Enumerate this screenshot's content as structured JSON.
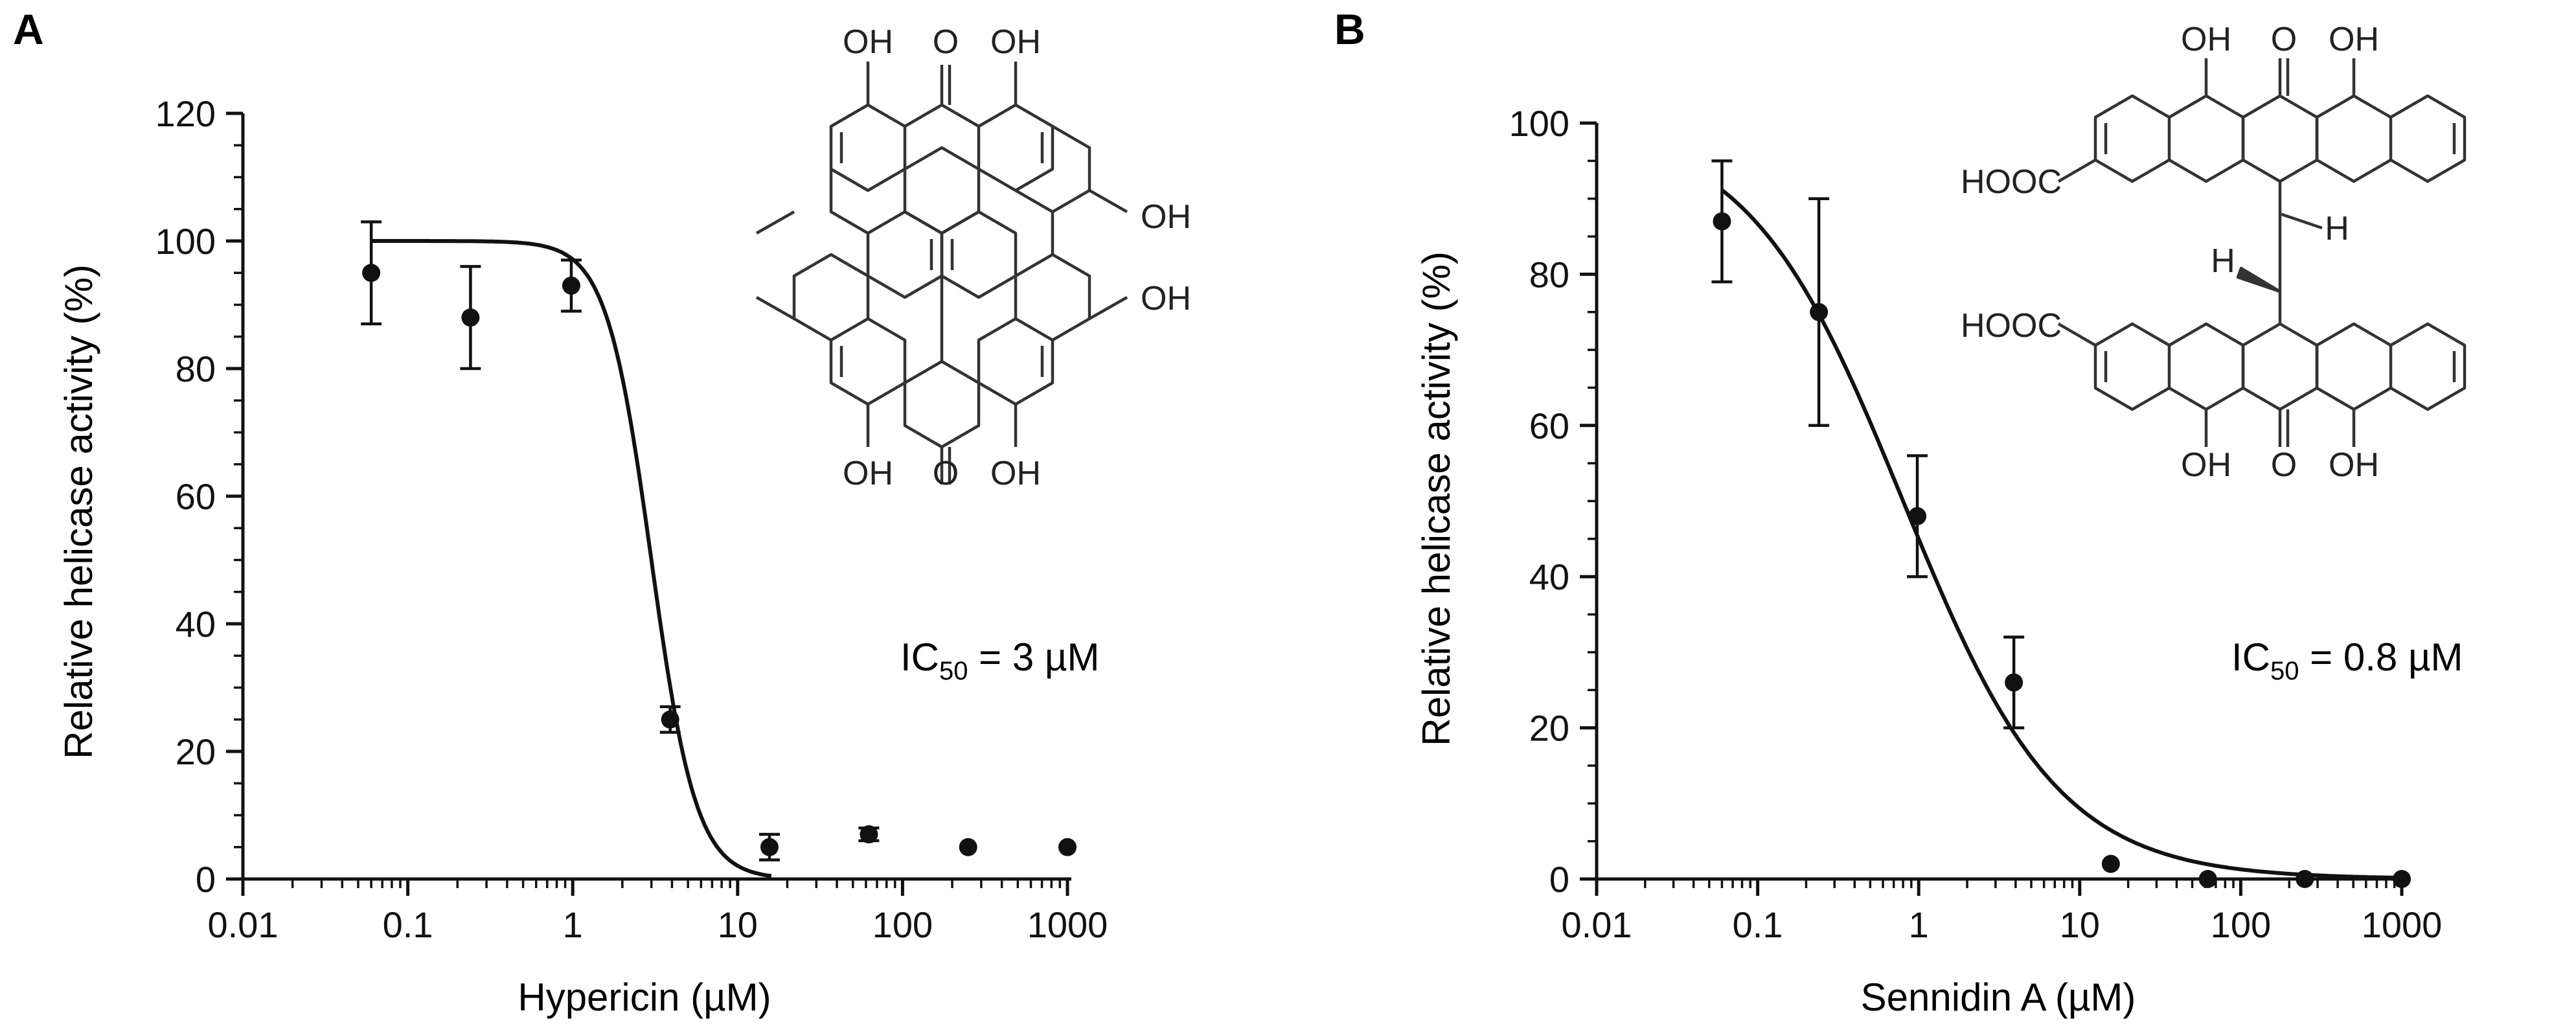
{
  "chart_data": [
    {
      "panel_label": "A",
      "type": "scatter",
      "x_scale": "log",
      "xlabel": "Hypericin (µM)",
      "ylabel": "Relative helicase activity (%)",
      "xlim": [
        0.01,
        1000
      ],
      "ylim": [
        0,
        120
      ],
      "xticks": [
        "0.01",
        "0.1",
        "1",
        "10",
        "100",
        "1000"
      ],
      "yticks": [
        "0",
        "20",
        "40",
        "60",
        "80",
        "100",
        "120"
      ],
      "points": [
        {
          "x": 0.06,
          "y": 95,
          "err": 8
        },
        {
          "x": 0.24,
          "y": 88,
          "err": 8
        },
        {
          "x": 0.98,
          "y": 93,
          "err": 4
        },
        {
          "x": 3.9,
          "y": 25,
          "err": 2
        },
        {
          "x": 15.6,
          "y": 5,
          "err": 2
        },
        {
          "x": 62.5,
          "y": 7,
          "err": 1
        },
        {
          "x": 250,
          "y": 5,
          "err": 0
        },
        {
          "x": 1000,
          "y": 5,
          "err": 0
        }
      ],
      "fit": {
        "top": 100,
        "bottom": 0,
        "ic50": 3,
        "hill": 3.2,
        "x_range": [
          0.06,
          16
        ]
      },
      "annotation": {
        "prefix": "IC",
        "subscript": "50",
        "suffix": " = 3 µM"
      },
      "structure_labels": [
        "OH",
        "O",
        "OH",
        "OH",
        "OH",
        "OH",
        "O",
        "OH"
      ]
    },
    {
      "panel_label": "B",
      "type": "scatter",
      "x_scale": "log",
      "xlabel": "Sennidin A (µM)",
      "ylabel": "Relative helicase activity (%)",
      "xlim": [
        0.01,
        1000
      ],
      "ylim": [
        0,
        100
      ],
      "xticks": [
        "0.01",
        "0.1",
        "1",
        "10",
        "100",
        "1000"
      ],
      "yticks": [
        "0",
        "20",
        "40",
        "60",
        "80",
        "100"
      ],
      "points": [
        {
          "x": 0.06,
          "y": 87,
          "err": 8
        },
        {
          "x": 0.24,
          "y": 75,
          "err": 15
        },
        {
          "x": 0.98,
          "y": 48,
          "err": 8
        },
        {
          "x": 3.9,
          "y": 26,
          "err": 6
        },
        {
          "x": 15.6,
          "y": 2,
          "err": 0
        },
        {
          "x": 62.5,
          "y": 0,
          "err": 0
        },
        {
          "x": 250,
          "y": 0,
          "err": 0
        },
        {
          "x": 1000,
          "y": 0,
          "err": 0
        }
      ],
      "fit": {
        "top": 100,
        "bottom": 0,
        "ic50": 0.8,
        "hill": 0.9,
        "x_range": [
          0.06,
          1000
        ]
      },
      "annotation": {
        "prefix": "IC",
        "subscript": "50",
        "suffix": " = 0.8 µM"
      },
      "structure_labels": [
        "OH",
        "O",
        "OH",
        "HOOC",
        "H",
        "H",
        "HOOC",
        "OH",
        "O",
        "OH"
      ]
    }
  ]
}
